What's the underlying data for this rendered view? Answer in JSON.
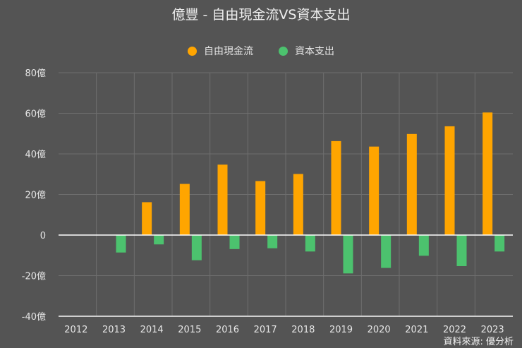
{
  "chart_data": {
    "type": "bar",
    "title": "億豐 - 自由現金流VS資本支出",
    "categories": [
      "2012",
      "2013",
      "2014",
      "2015",
      "2016",
      "2017",
      "2018",
      "2019",
      "2020",
      "2021",
      "2022",
      "2023"
    ],
    "series": [
      {
        "name": "自由現金流",
        "color": "#FFA500",
        "values": [
          null,
          null,
          16.2,
          25.2,
          34.7,
          26.6,
          30.1,
          46.3,
          43.6,
          49.8,
          53.6,
          60.4
        ]
      },
      {
        "name": "資本支出",
        "color": "#4CC26E",
        "values": [
          null,
          -8.6,
          -4.6,
          -12.4,
          -6.9,
          -6.5,
          -8.1,
          -18.9,
          -16.2,
          -10.2,
          -15.3,
          -8.1
        ]
      }
    ],
    "ylim": [
      -40,
      80
    ],
    "yticks": [
      80,
      60,
      40,
      20,
      0,
      -20,
      -40
    ],
    "ytick_labels": [
      "80億",
      "60億",
      "40億",
      "20億",
      "0",
      "-20億",
      "-40億"
    ],
    "grid": true,
    "legend_position": "top-center",
    "source": "資料來源: 優分析"
  }
}
